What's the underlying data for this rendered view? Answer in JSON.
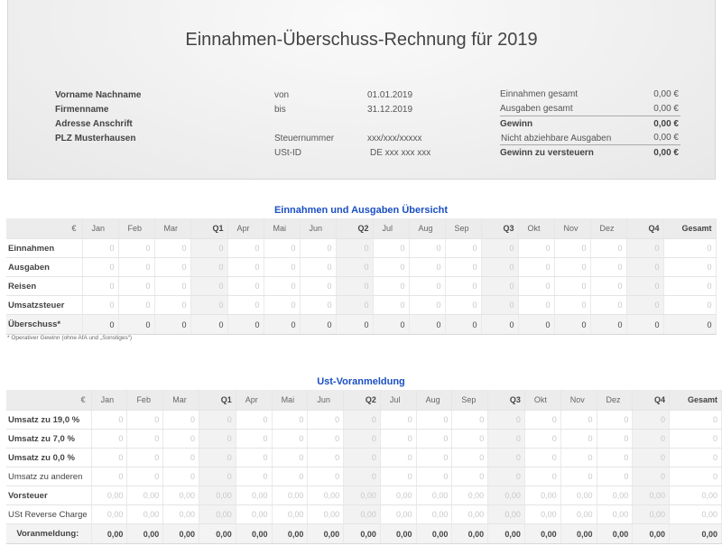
{
  "header": {
    "title": "Einnahmen-Überschuss-Rechnung für 2019",
    "address": [
      "Vorname Nachname",
      "Firmenname",
      "Adresse Anschrift",
      "PLZ Musterhausen"
    ],
    "von_label": "von",
    "von_value": "01.01.2019",
    "bis_label": "bis",
    "bis_value": "31.12.2019",
    "steuernummer_label": "Steuernummer",
    "steuernummer_value": "xxx/xxx/xxxxx",
    "ustid_label": "USt-ID",
    "ustid_value": "DE xxx xxx xxx",
    "summary": [
      {
        "label": "Einnahmen gesamt",
        "value": "0,00 €",
        "bold": false
      },
      {
        "label": "Ausgaben gesamt",
        "value": "0,00 €",
        "bold": false
      },
      {
        "label": "Gewinn",
        "value": "0,00 €",
        "bold": true
      },
      {
        "label": "Nicht abziehbare Ausgaben",
        "value": "0,00 €",
        "bold": false
      },
      {
        "label": "Gewinn zu versteuern",
        "value": "0,00 €",
        "bold": true
      }
    ]
  },
  "columns": [
    "€",
    "Jan",
    "Feb",
    "Mar",
    "Q1",
    "Apr",
    "Mai",
    "Jun",
    "Q2",
    "Jul",
    "Aug",
    "Sep",
    "Q3",
    "Okt",
    "Nov",
    "Dez",
    "Q4",
    "Gesamt"
  ],
  "overview": {
    "title": "Einnahmen und Ausgaben Übersicht",
    "rows": [
      {
        "label": "Einnahmen",
        "bold": true,
        "values": [
          "0",
          "0",
          "0",
          "0",
          "0",
          "0",
          "0",
          "0",
          "0",
          "0",
          "0",
          "0",
          "0",
          "0",
          "0",
          "0",
          "0"
        ]
      },
      {
        "label": "Ausgaben",
        "bold": true,
        "values": [
          "0",
          "0",
          "0",
          "0",
          "0",
          "0",
          "0",
          "0",
          "0",
          "0",
          "0",
          "0",
          "0",
          "0",
          "0",
          "0",
          "0"
        ]
      },
      {
        "label": "Reisen",
        "bold": true,
        "values": [
          "0",
          "0",
          "0",
          "0",
          "0",
          "0",
          "0",
          "0",
          "0",
          "0",
          "0",
          "0",
          "0",
          "0",
          "0",
          "0",
          "0"
        ]
      },
      {
        "label": "Umsatzsteuer",
        "bold": true,
        "values": [
          "0",
          "0",
          "0",
          "0",
          "0",
          "0",
          "0",
          "0",
          "0",
          "0",
          "0",
          "0",
          "0",
          "0",
          "0",
          "0",
          "0"
        ]
      },
      {
        "label": "Überschuss*",
        "bold": true,
        "type": "sum",
        "values": [
          "0",
          "0",
          "0",
          "0",
          "0",
          "0",
          "0",
          "0",
          "0",
          "0",
          "0",
          "0",
          "0",
          "0",
          "0",
          "0",
          "0"
        ]
      }
    ],
    "footnote": "* Operativer Gewinn (ohne AfA und „Sonstiges“)"
  },
  "vat": {
    "title": "Ust-Voranmeldung",
    "rows": [
      {
        "label": "Umsatz zu  19,0 %",
        "bold": true,
        "values": [
          "0",
          "0",
          "0",
          "0",
          "0",
          "0",
          "0",
          "0",
          "0",
          "0",
          "0",
          "0",
          "0",
          "0",
          "0",
          "0",
          "0"
        ]
      },
      {
        "label": "Umsatz zu  7,0 %",
        "bold": true,
        "values": [
          "0",
          "0",
          "0",
          "0",
          "0",
          "0",
          "0",
          "0",
          "0",
          "0",
          "0",
          "0",
          "0",
          "0",
          "0",
          "0",
          "0"
        ]
      },
      {
        "label": "Umsatz zu  0,0 %",
        "bold": true,
        "values": [
          "0",
          "0",
          "0",
          "0",
          "0",
          "0",
          "0",
          "0",
          "0",
          "0",
          "0",
          "0",
          "0",
          "0",
          "0",
          "0",
          "0"
        ]
      },
      {
        "label": "Umsatz zu anderen",
        "bold": false,
        "values": [
          "0",
          "0",
          "0",
          "0",
          "0",
          "0",
          "0",
          "0",
          "0",
          "0",
          "0",
          "0",
          "0",
          "0",
          "0",
          "0",
          "0"
        ]
      },
      {
        "label": "Vorsteuer",
        "bold": true,
        "values": [
          "0,00",
          "0,00",
          "0,00",
          "0,00",
          "0,00",
          "0,00",
          "0,00",
          "0,00",
          "0,00",
          "0,00",
          "0,00",
          "0,00",
          "0,00",
          "0,00",
          "0,00",
          "0,00",
          "0,00"
        ]
      },
      {
        "label": "USt Reverse Charge",
        "bold": false,
        "values": [
          "0,00",
          "0,00",
          "0,00",
          "0,00",
          "0,00",
          "0,00",
          "0,00",
          "0,00",
          "0,00",
          "0,00",
          "0,00",
          "0,00",
          "0,00",
          "0,00",
          "0,00",
          "0,00",
          "0,00"
        ]
      },
      {
        "label": "Voranmeldung:",
        "bold": true,
        "type": "sumb",
        "values": [
          "0,00",
          "0,00",
          "0,00",
          "0,00",
          "0,00",
          "0,00",
          "0,00",
          "0,00",
          "0,00",
          "0,00",
          "0,00",
          "0,00",
          "0,00",
          "0,00",
          "0,00",
          "0,00",
          "0,00"
        ]
      }
    ]
  }
}
